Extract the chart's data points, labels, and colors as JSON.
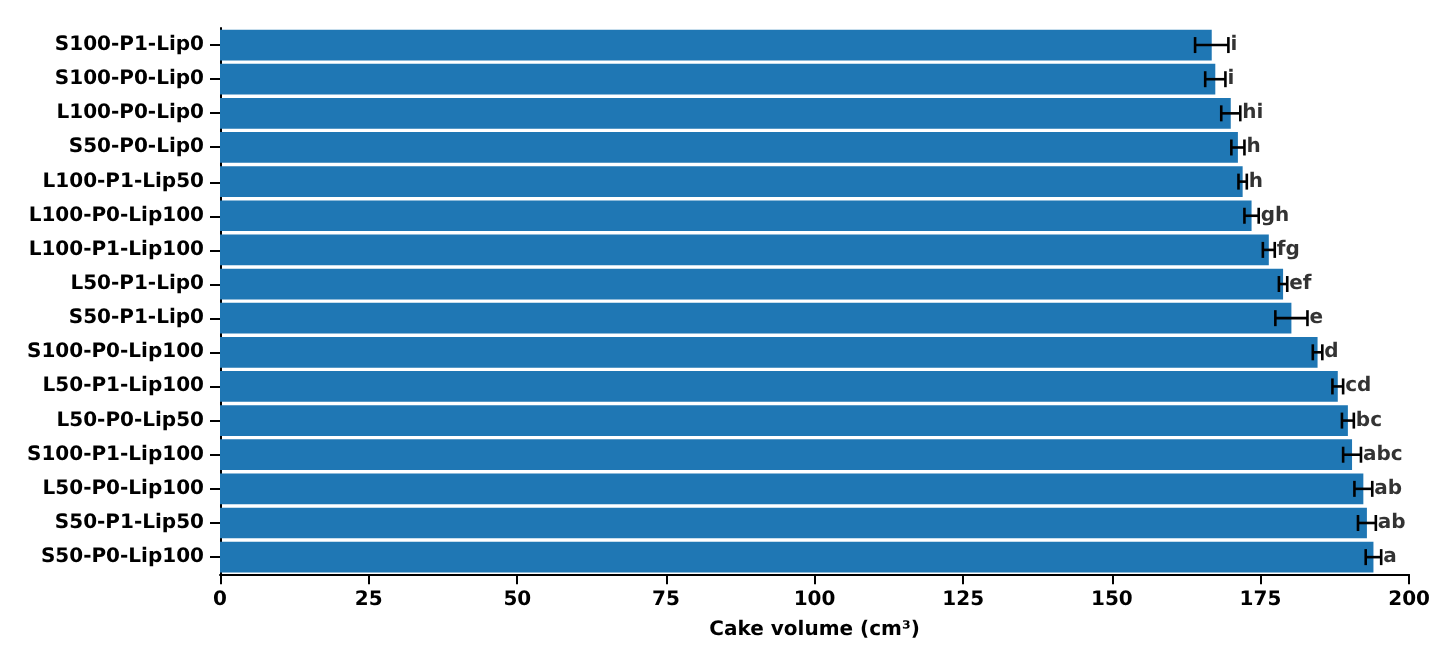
{
  "chart_data": {
    "type": "bar",
    "orientation": "horizontal",
    "xlabel": "Cake volume (cm³)",
    "categories": [
      "S100-P1-Lip0",
      "S100-P0-Lip0",
      "L100-P0-Lip0",
      "S50-P0-Lip0",
      "L100-P1-Lip50",
      "L100-P0-Lip100",
      "L100-P1-Lip100",
      "L50-P1-Lip0",
      "S50-P1-Lip0",
      "S100-P0-Lip100",
      "L50-P1-Lip100",
      "L50-P0-Lip50",
      "S100-P1-Lip100",
      "L50-P0-Lip100",
      "S50-P1-Lip50",
      "S50-P0-Lip100"
    ],
    "values": [
      166.8,
      167.4,
      170.0,
      171.2,
      172.0,
      173.5,
      176.4,
      178.8,
      180.2,
      184.6,
      188.0,
      189.7,
      190.4,
      192.3,
      192.9,
      194.0
    ],
    "errors": [
      2.8,
      1.7,
      1.6,
      1.1,
      0.7,
      1.2,
      1.0,
      0.7,
      2.7,
      0.8,
      0.9,
      1.0,
      1.5,
      1.5,
      1.5,
      1.3
    ],
    "color": "#1f77b4",
    "xlim": [
      0,
      200
    ],
    "xticks": [
      0,
      25,
      50,
      75,
      100,
      125,
      150,
      175,
      200
    ],
    "grid": false,
    "annotations": [
      {
        "text": "i",
        "x": 169.6,
        "y": "S100-P1-Lip0"
      },
      {
        "text": "i",
        "x": 169.1,
        "y": "S100-P0-Lip0"
      },
      {
        "text": "hi",
        "x": 171.6,
        "y": "L100-P0-Lip0"
      },
      {
        "text": "h",
        "x": 172.3,
        "y": "S50-P0-Lip0"
      },
      {
        "text": "h",
        "x": 172.7,
        "y": "L100-P1-Lip50"
      },
      {
        "text": "gh",
        "x": 174.7,
        "y": "L100-P0-Lip100"
      },
      {
        "text": "fg",
        "x": 177.4,
        "y": "L100-P1-Lip100"
      },
      {
        "text": "ef",
        "x": 179.5,
        "y": "L50-P1-Lip0"
      },
      {
        "text": "e",
        "x": 182.9,
        "y": "S50-P1-Lip0"
      },
      {
        "text": "d",
        "x": 185.4,
        "y": "S100-P0-Lip100"
      },
      {
        "text": "cd",
        "x": 188.9,
        "y": "L50-P1-Lip100"
      },
      {
        "text": "bc",
        "x": 190.7,
        "y": "L50-P0-Lip50"
      },
      {
        "text": "abc",
        "x": 191.9,
        "y": "S100-P1-Lip100"
      },
      {
        "text": "ab",
        "x": 193.8,
        "y": "L50-P0-Lip100"
      },
      {
        "text": "ab",
        "x": 194.4,
        "y": "S50-P1-Lip50"
      },
      {
        "text": "a",
        "x": 195.3,
        "y": "S50-P0-Lip100"
      }
    ]
  }
}
